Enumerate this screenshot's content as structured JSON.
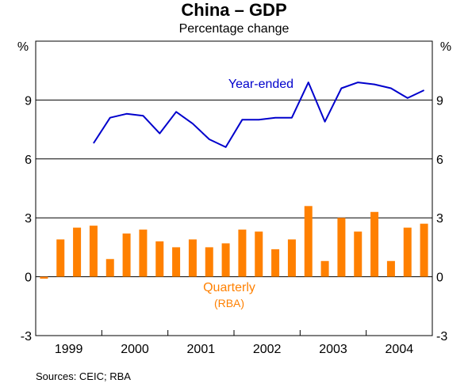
{
  "title": "China – GDP",
  "subtitle": "Percentage change",
  "source": "Sources: CEIC; RBA",
  "colors": {
    "line": "#0000cc",
    "bars": "#ff8000",
    "bars_sub": "#ff8000",
    "grid": "#000000"
  },
  "chart_data": {
    "type": "bar",
    "ylabel_left": "%",
    "ylabel_right": "%",
    "ylim": [
      -3,
      12
    ],
    "yticks": [
      -3,
      0,
      3,
      6,
      9
    ],
    "year_labels": [
      "1999",
      "2000",
      "2001",
      "2002",
      "2003",
      "2004"
    ],
    "line_label": "Year-ended",
    "bar_label": "Quarterly",
    "bar_sublabel": "(RBA)",
    "series": [
      {
        "name": "Quarterly",
        "type": "bar",
        "quarters": [
          "1999Q1",
          "1999Q2",
          "1999Q3",
          "1999Q4",
          "2000Q1",
          "2000Q2",
          "2000Q3",
          "2000Q4",
          "2001Q1",
          "2001Q2",
          "2001Q3",
          "2001Q4",
          "2002Q1",
          "2002Q2",
          "2002Q3",
          "2002Q4",
          "2003Q1",
          "2003Q2",
          "2003Q3",
          "2003Q4",
          "2004Q1",
          "2004Q2",
          "2004Q3",
          "2004Q4"
        ],
        "values": [
          -0.1,
          1.9,
          2.5,
          2.6,
          0.9,
          2.2,
          2.4,
          1.8,
          1.5,
          1.9,
          1.5,
          1.7,
          2.4,
          2.3,
          1.4,
          1.9,
          3.6,
          0.8,
          3.0,
          2.3,
          3.3,
          0.8,
          2.5,
          2.7
        ]
      },
      {
        "name": "Year-ended",
        "type": "line",
        "quarters": [
          "1999Q4",
          "2000Q1",
          "2000Q2",
          "2000Q3",
          "2000Q4",
          "2001Q1",
          "2001Q2",
          "2001Q3",
          "2001Q4",
          "2002Q1",
          "2002Q2",
          "2002Q3",
          "2002Q4",
          "2003Q1",
          "2003Q2",
          "2003Q3",
          "2003Q4",
          "2004Q1",
          "2004Q2",
          "2004Q3",
          "2004Q4"
        ],
        "values": [
          6.8,
          8.1,
          8.3,
          8.2,
          7.3,
          8.4,
          7.8,
          7.0,
          6.6,
          8.0,
          8.0,
          8.1,
          8.1,
          9.9,
          7.9,
          9.6,
          9.9,
          9.8,
          9.6,
          9.1,
          9.5
        ]
      }
    ]
  }
}
